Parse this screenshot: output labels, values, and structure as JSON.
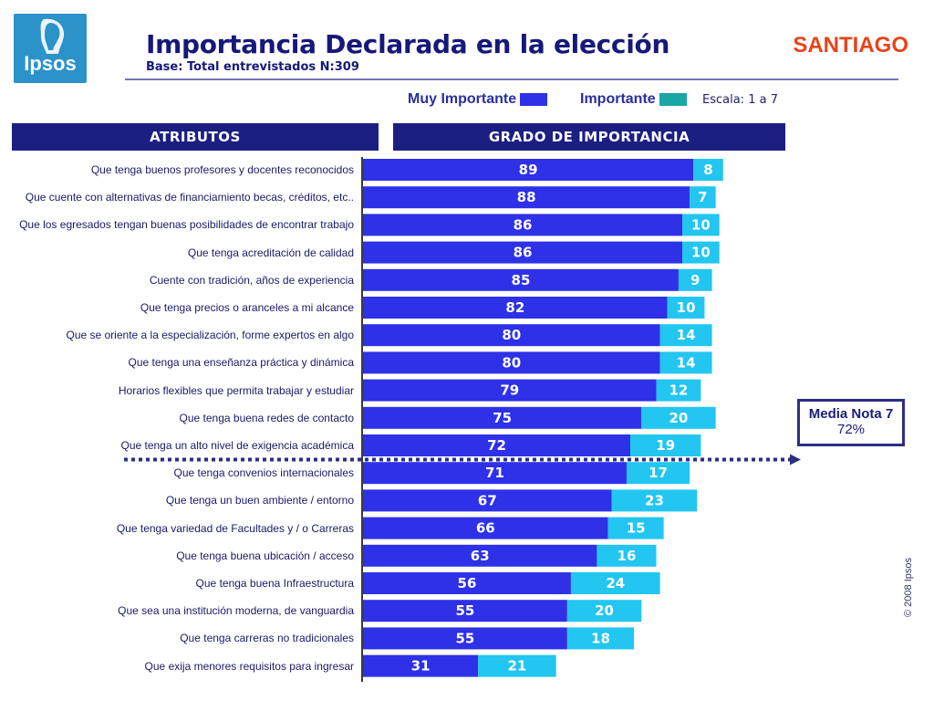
{
  "header": {
    "logo_text": "Ipsos",
    "title": "Importancia Declarada en la elección",
    "subtitle": "Base: Total entrevistados N:309",
    "city": "SANTIAGO"
  },
  "legend": {
    "muy_importante": "Muy Importante",
    "importante": "Importante",
    "scale": "Escala: 1 a 7"
  },
  "panels": {
    "left": "ATRIBUTOS",
    "right": "GRADO DE IMPORTANCIA"
  },
  "media_box": {
    "line1": "Media Nota 7",
    "line2": "72%"
  },
  "copyright": "© 2008 Ipsos",
  "colors": {
    "muy_importante": "#2e31e8",
    "importante": "#22c6f0",
    "header_bg": "#1c1e82"
  },
  "chart_data": {
    "type": "bar",
    "orientation": "horizontal",
    "stacked": true,
    "categories": [
      "Que tenga buenos profesores y docentes reconocidos",
      "Que cuente con alternativas de financiamiento becas, créditos, etc..",
      "Que los egresados tengan buenas posibilidades de encontrar trabajo",
      "Que tenga acreditación de calidad",
      "Cuente con tradición, años de experiencia",
      "Que tenga precios o aranceles a mi alcance",
      "Que se oriente a la especialización, forme expertos en algo",
      "Que tenga una enseñanza práctica y dinámica",
      "Horarios flexibles que permita trabajar y estudiar",
      "Que tenga buena redes de contacto",
      "Que tenga un alto nivel de exigencia académica",
      "Que tenga convenios internacionales",
      "Que tenga un buen ambiente / entorno",
      "Que tenga variedad de Facultades y / o Carreras",
      "Que tenga buena ubicación / acceso",
      "Que tenga buena Infraestructura",
      "Que sea una institución moderna, de vanguardia",
      "Que tenga  carreras no tradicionales",
      "Que exija menores requisitos para ingresar"
    ],
    "series": [
      {
        "name": "Muy Importante",
        "values": [
          89,
          88,
          86,
          86,
          85,
          82,
          80,
          80,
          79,
          75,
          72,
          71,
          67,
          66,
          63,
          56,
          55,
          55,
          31
        ]
      },
      {
        "name": "Importante",
        "values": [
          8,
          7,
          10,
          10,
          9,
          10,
          14,
          14,
          12,
          20,
          19,
          17,
          23,
          15,
          16,
          24,
          20,
          18,
          21
        ]
      }
    ],
    "xlim": [
      0,
      100
    ],
    "reference_line": {
      "label": "Media Nota 7 72%",
      "after_category_index": 10
    }
  }
}
